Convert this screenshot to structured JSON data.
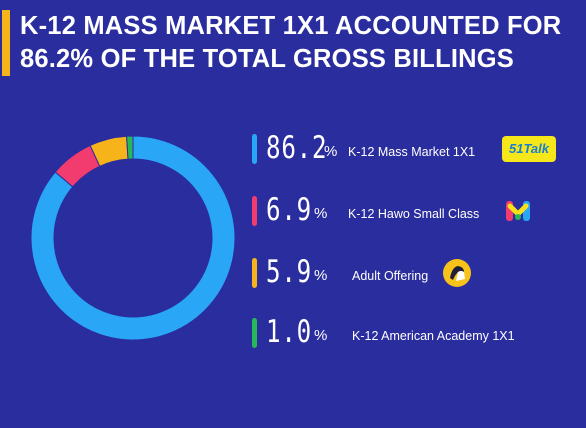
{
  "header": {
    "title_line1": "K-12 MASS MARKET 1X1 ACCOUNTED FOR",
    "title_line2": "86.2% OF THE TOTAL GROSS BILLINGS"
  },
  "colors": {
    "background": "#2a2d9e",
    "accent_bar": "#f7b31a"
  },
  "legend": [
    {
      "value": "86.2",
      "sign": "%",
      "label": "K-12 Mass Market 1X1",
      "color": "#29a6f5",
      "icon": "51talk-logo",
      "icon_text": "51Talk"
    },
    {
      "value": "6.9",
      "sign": "%",
      "label": "K-12 Hawo Small Class",
      "color": "#f23b6e",
      "icon": "hawo-logo-icon"
    },
    {
      "value": "5.9",
      "sign": "%",
      "label": "Adult Offering",
      "color": "#f7b31a",
      "icon": "adult-offering-icon"
    },
    {
      "value": "1.0",
      "sign": "%",
      "label": "K-12 American Academy 1X1",
      "color": "#27b85a",
      "icon": ""
    }
  ],
  "chart_data": {
    "type": "pie",
    "title": "K-12 MASS MARKET 1X1 ACCOUNTED FOR 86.2% OF THE TOTAL GROSS BILLINGS",
    "categories": [
      "K-12 Mass Market 1X1",
      "K-12 Hawo Small Class",
      "Adult Offering",
      "K-12 American Academy 1X1"
    ],
    "values": [
      86.2,
      6.9,
      5.9,
      1.0
    ],
    "unit": "%",
    "colors": [
      "#29a6f5",
      "#f23b6e",
      "#f7b31a",
      "#27b85a"
    ],
    "donut": true,
    "legend_position": "right"
  }
}
